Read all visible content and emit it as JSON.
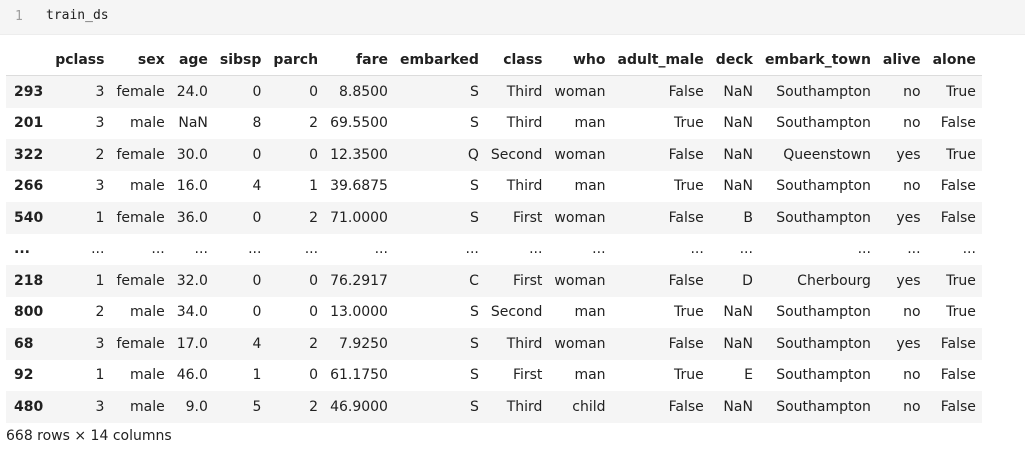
{
  "code_cell": {
    "line_number": "1",
    "code": "train_ds"
  },
  "dataframe": {
    "columns": [
      "pclass",
      "sex",
      "age",
      "sibsp",
      "parch",
      "fare",
      "embarked",
      "class",
      "who",
      "adult_male",
      "deck",
      "embark_town",
      "alive",
      "alone"
    ],
    "rows": [
      {
        "index": "293",
        "cells": [
          "3",
          "female",
          "24.0",
          "0",
          "0",
          "8.8500",
          "S",
          "Third",
          "woman",
          "False",
          "NaN",
          "Southampton",
          "no",
          "True"
        ]
      },
      {
        "index": "201",
        "cells": [
          "3",
          "male",
          "NaN",
          "8",
          "2",
          "69.5500",
          "S",
          "Third",
          "man",
          "True",
          "NaN",
          "Southampton",
          "no",
          "False"
        ]
      },
      {
        "index": "322",
        "cells": [
          "2",
          "female",
          "30.0",
          "0",
          "0",
          "12.3500",
          "Q",
          "Second",
          "woman",
          "False",
          "NaN",
          "Queenstown",
          "yes",
          "True"
        ]
      },
      {
        "index": "266",
        "cells": [
          "3",
          "male",
          "16.0",
          "4",
          "1",
          "39.6875",
          "S",
          "Third",
          "man",
          "True",
          "NaN",
          "Southampton",
          "no",
          "False"
        ]
      },
      {
        "index": "540",
        "cells": [
          "1",
          "female",
          "36.0",
          "0",
          "2",
          "71.0000",
          "S",
          "First",
          "woman",
          "False",
          "B",
          "Southampton",
          "yes",
          "False"
        ]
      },
      {
        "index": "...",
        "cells": [
          "...",
          "...",
          "...",
          "...",
          "...",
          "...",
          "...",
          "...",
          "...",
          "...",
          "...",
          "...",
          "...",
          "..."
        ]
      },
      {
        "index": "218",
        "cells": [
          "1",
          "female",
          "32.0",
          "0",
          "0",
          "76.2917",
          "C",
          "First",
          "woman",
          "False",
          "D",
          "Cherbourg",
          "yes",
          "True"
        ]
      },
      {
        "index": "800",
        "cells": [
          "2",
          "male",
          "34.0",
          "0",
          "0",
          "13.0000",
          "S",
          "Second",
          "man",
          "True",
          "NaN",
          "Southampton",
          "no",
          "True"
        ]
      },
      {
        "index": "68",
        "cells": [
          "3",
          "female",
          "17.0",
          "4",
          "2",
          "7.9250",
          "S",
          "Third",
          "woman",
          "False",
          "NaN",
          "Southampton",
          "yes",
          "False"
        ]
      },
      {
        "index": "92",
        "cells": [
          "1",
          "male",
          "46.0",
          "1",
          "0",
          "61.1750",
          "S",
          "First",
          "man",
          "True",
          "E",
          "Southampton",
          "no",
          "False"
        ]
      },
      {
        "index": "480",
        "cells": [
          "3",
          "male",
          "9.0",
          "5",
          "2",
          "46.9000",
          "S",
          "Third",
          "child",
          "False",
          "NaN",
          "Southampton",
          "no",
          "False"
        ]
      }
    ],
    "footer": "668 rows × 14 columns"
  }
}
